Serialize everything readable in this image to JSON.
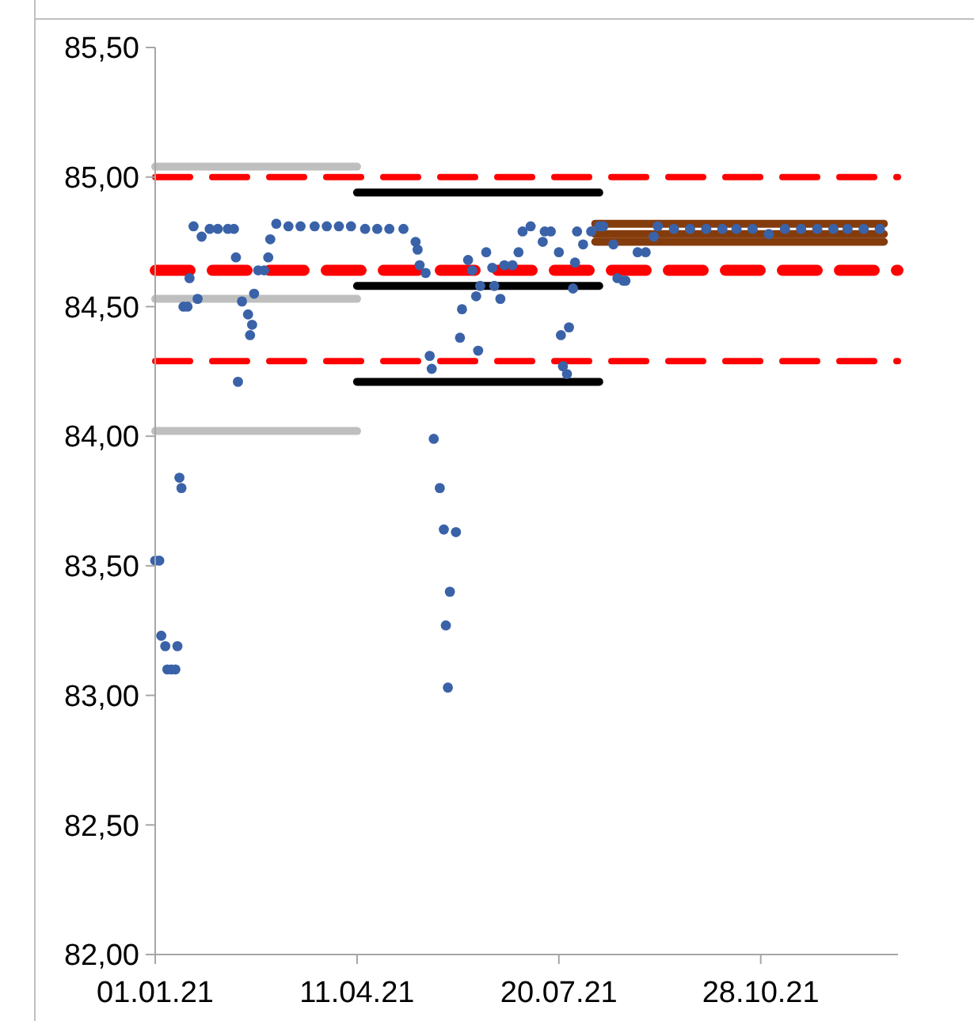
{
  "chart_data": {
    "type": "scatter",
    "xlim": [
      "2021-01-01",
      "2022-01-04"
    ],
    "xticks": [
      {
        "value": "2021-01-01",
        "label": "01.01.21"
      },
      {
        "value": "2021-04-11",
        "label": "11.04.21"
      },
      {
        "value": "2021-07-20",
        "label": "20.07.21"
      },
      {
        "value": "2021-10-28",
        "label": "28.10.21"
      }
    ],
    "ylim": [
      82,
      85.5
    ],
    "yticks": [
      {
        "value": 82,
        "label": "82,00"
      },
      {
        "value": 82.5,
        "label": "82,50"
      },
      {
        "value": 83,
        "label": "83,00"
      },
      {
        "value": 83.5,
        "label": "83,50"
      },
      {
        "value": 84,
        "label": "84,00"
      },
      {
        "value": 84.5,
        "label": "84,50"
      },
      {
        "value": 85,
        "label": "85,00"
      },
      {
        "value": 85.5,
        "label": "85,50"
      }
    ],
    "grid": false,
    "ref_lines": [
      {
        "axis": "y",
        "value": 85.0,
        "color": "#ff0000",
        "line_style": "dashed"
      },
      {
        "axis": "y",
        "value": 84.64,
        "color": "#ff0000",
        "line_style": "dashed"
      },
      {
        "axis": "y",
        "value": 84.29,
        "color": "#ff0000",
        "line_style": "dashed"
      }
    ],
    "series": [
      {
        "type": "line",
        "color": "#843c0c",
        "x": [
          "2021-08-07",
          "2021-12-28"
        ],
        "values": [
          84.82,
          84.82
        ]
      },
      {
        "type": "line",
        "color": "#843c0c",
        "x": [
          "2021-08-07",
          "2021-12-28"
        ],
        "values": [
          84.78,
          84.78
        ]
      },
      {
        "type": "line",
        "color": "#843c0c",
        "x": [
          "2021-08-07",
          "2021-12-28"
        ],
        "values": [
          84.75,
          84.75
        ]
      },
      {
        "type": "line",
        "color": "#bfbfbf",
        "x": [
          "2021-01-01",
          "2021-04-11"
        ],
        "values": [
          85.04,
          85.04
        ]
      },
      {
        "type": "line",
        "color": "#bfbfbf",
        "x": [
          "2021-01-01",
          "2021-04-11"
        ],
        "values": [
          84.53,
          84.53
        ]
      },
      {
        "type": "line",
        "color": "#bfbfbf",
        "x": [
          "2021-01-01",
          "2021-04-11"
        ],
        "values": [
          84.02,
          84.02
        ]
      },
      {
        "type": "line",
        "color": "#000000",
        "x": [
          "2021-04-11",
          "2021-08-09"
        ],
        "values": [
          84.94,
          84.94
        ]
      },
      {
        "type": "line",
        "color": "#000000",
        "x": [
          "2021-04-11",
          "2021-08-09"
        ],
        "values": [
          84.58,
          84.58
        ]
      },
      {
        "type": "line",
        "color": "#000000",
        "x": [
          "2021-04-11",
          "2021-08-09"
        ],
        "values": [
          84.21,
          84.21
        ]
      },
      {
        "color": "#3a62a8",
        "marker": "circle",
        "x": [
          "2021-01-01",
          "2021-01-03",
          "2021-01-04",
          "2021-01-06",
          "2021-01-12",
          "2021-01-07",
          "2021-01-09",
          "2021-01-11",
          "2021-01-13",
          "2021-01-14",
          "2021-01-15",
          "2021-01-17",
          "2021-01-18",
          "2021-01-20",
          "2021-01-22",
          "2021-01-24",
          "2021-01-28",
          "2021-02-01",
          "2021-02-06",
          "2021-02-09",
          "2021-02-10",
          "2021-02-11",
          "2021-02-13",
          "2021-02-16",
          "2021-02-17",
          "2021-02-18",
          "2021-02-19",
          "2021-02-21",
          "2021-02-24",
          "2021-02-26",
          "2021-02-27",
          "2021-03-02",
          "2021-03-08",
          "2021-03-14",
          "2021-03-21",
          "2021-03-27",
          "2021-04-02",
          "2021-04-08",
          "2021-04-15",
          "2021-04-21",
          "2021-04-27",
          "2021-05-04",
          "2021-05-10",
          "2021-05-11",
          "2021-05-12",
          "2021-05-15",
          "2021-05-17",
          "2021-05-18",
          "2021-05-19",
          "2021-05-22",
          "2021-05-24",
          "2021-05-25",
          "2021-05-26",
          "2021-05-27",
          "2021-05-30",
          "2021-06-01",
          "2021-06-02",
          "2021-06-05",
          "2021-06-07",
          "2021-06-09",
          "2021-06-10",
          "2021-06-11",
          "2021-06-14",
          "2021-06-17",
          "2021-06-18",
          "2021-06-21",
          "2021-06-23",
          "2021-06-27",
          "2021-06-30",
          "2021-07-02",
          "2021-07-06",
          "2021-07-12",
          "2021-07-13",
          "2021-07-16",
          "2021-07-20",
          "2021-07-21",
          "2021-07-22",
          "2021-07-24",
          "2021-07-25",
          "2021-07-27",
          "2021-07-28",
          "2021-07-29",
          "2021-08-01",
          "2021-08-05",
          "2021-08-09",
          "2021-08-11",
          "2021-08-16",
          "2021-08-18",
          "2021-08-21",
          "2021-08-22",
          "2021-08-28",
          "2021-09-01",
          "2021-09-05",
          "2021-09-07",
          "2021-09-15",
          "2021-09-23",
          "2021-10-01",
          "2021-10-09",
          "2021-10-16",
          "2021-10-24",
          "2021-11-01",
          "2021-11-09",
          "2021-11-17",
          "2021-11-25",
          "2021-12-03",
          "2021-12-10",
          "2021-12-18",
          "2021-12-26"
        ],
        "values": [
          83.52,
          83.52,
          83.23,
          83.19,
          83.19,
          83.1,
          83.1,
          83.1,
          83.84,
          83.8,
          84.5,
          84.5,
          84.61,
          84.81,
          84.53,
          84.77,
          84.8,
          84.8,
          84.8,
          84.8,
          84.69,
          84.21,
          84.52,
          84.47,
          84.39,
          84.43,
          84.55,
          84.64,
          84.64,
          84.69,
          84.76,
          84.82,
          84.81,
          84.81,
          84.81,
          84.81,
          84.81,
          84.81,
          84.8,
          84.8,
          84.8,
          84.8,
          84.75,
          84.72,
          84.66,
          84.63,
          84.31,
          84.26,
          83.99,
          83.8,
          83.64,
          83.27,
          83.03,
          83.4,
          83.63,
          84.38,
          84.49,
          84.68,
          84.64,
          84.54,
          84.33,
          84.58,
          84.71,
          84.65,
          84.58,
          84.53,
          84.66,
          84.66,
          84.71,
          84.79,
          84.81,
          84.75,
          84.79,
          84.79,
          84.71,
          84.39,
          84.27,
          84.24,
          84.42,
          84.57,
          84.67,
          84.79,
          84.74,
          84.79,
          84.81,
          84.81,
          84.74,
          84.61,
          84.6,
          84.6,
          84.71,
          84.71,
          84.77,
          84.81,
          84.8,
          84.8,
          84.8,
          84.8,
          84.8,
          84.8,
          84.78,
          84.8,
          84.8,
          84.8,
          84.8,
          84.8,
          84.8,
          84.8
        ]
      }
    ]
  }
}
